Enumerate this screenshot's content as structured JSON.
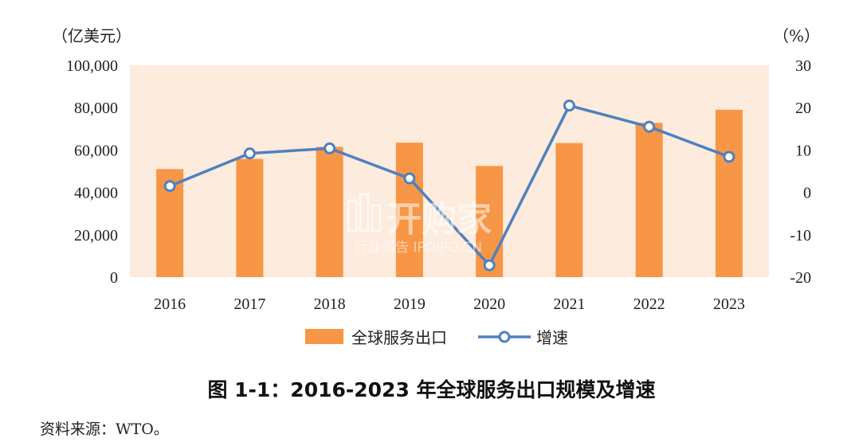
{
  "chart_data": {
    "type": "bar",
    "categories": [
      "2016",
      "2017",
      "2018",
      "2019",
      "2020",
      "2021",
      "2022",
      "2023"
    ],
    "series": [
      {
        "name": "全球服务出口",
        "type": "bar",
        "axis": "left",
        "values": [
          51000,
          55800,
          61500,
          63500,
          52500,
          63300,
          72800,
          79000
        ],
        "color": "#F79646"
      },
      {
        "name": "增速",
        "type": "line",
        "axis": "right",
        "values": [
          1.5,
          9.2,
          10.4,
          3.3,
          -17.2,
          20.5,
          15.5,
          8.4
        ],
        "color": "#4F81BD"
      }
    ],
    "left_axis": {
      "unit_label": "（亿美元）",
      "ylim": [
        0,
        100000
      ],
      "ticks": [
        "0",
        "20,000",
        "40,000",
        "60,000",
        "80,000",
        "100,000"
      ]
    },
    "right_axis": {
      "unit_label": "（%）",
      "ylim": [
        -20,
        30
      ],
      "ticks": [
        "-20",
        "-10",
        "0",
        "10",
        "20",
        "30"
      ]
    },
    "plot_background": "#FDEBDD",
    "legend_position": "bottom-center",
    "grid": false
  },
  "caption": "图 1-1：2016-2023 年全球服务出口规模及增速",
  "source": "资料来源：WTO。",
  "watermark": {
    "title": "开购家",
    "subtitle": "行业报告 IPOIPO.CN"
  }
}
